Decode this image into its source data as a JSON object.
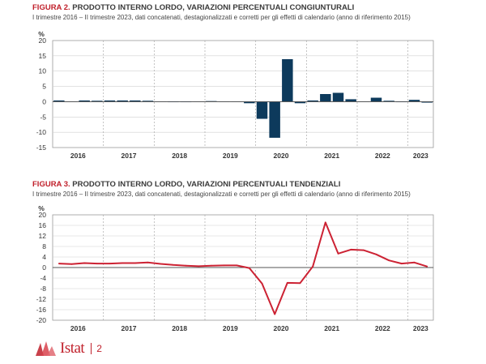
{
  "figures": [
    {
      "number": "FIGURA 2.",
      "title": "PRODOTTO INTERNO LORDO, VARIAZIONI PERCENTUALI CONGIUNTURALI",
      "subtitle": "I trimestre 2016 – II trimestre 2023, dati concatenati, destagionalizzati e corretti per gli effetti di calendario (anno di riferimento 2015)"
    },
    {
      "number": "FIGURA 3.",
      "title": "PRODOTTO INTERNO LORDO, VARIAZIONI PERCENTUALI TENDENZIALI",
      "subtitle": "I trimestre 2016 – II trimestre 2023, dati concatenati, destagionalizzati e corretti per gli effetti di calendario (anno di riferimento 2015)"
    }
  ],
  "chart_data": [
    {
      "type": "bar",
      "ylabel": "%",
      "ylim": [
        -15,
        20
      ],
      "yticks": [
        -15,
        -10,
        -5,
        0,
        5,
        10,
        15,
        20
      ],
      "grid": true,
      "bar_color": "#0d3a5c",
      "categories": [
        "I 2016",
        "II 2016",
        "III 2016",
        "IV 2016",
        "I 2017",
        "II 2017",
        "III 2017",
        "IV 2017",
        "I 2018",
        "II 2018",
        "III 2018",
        "IV 2018",
        "I 2019",
        "II 2019",
        "III 2019",
        "IV 2019",
        "I 2020",
        "II 2020",
        "III 2020",
        "IV 2020",
        "I 2021",
        "II 2021",
        "III 2021",
        "IV 2021",
        "I 2022",
        "II 2022",
        "III 2022",
        "IV 2022",
        "I 2023",
        "II 2023"
      ],
      "year_labels": [
        "2016",
        "2017",
        "2018",
        "2019",
        "2020",
        "2021",
        "2022",
        "2023"
      ],
      "values": [
        0.4,
        0.1,
        0.4,
        0.3,
        0.4,
        0.4,
        0.4,
        0.3,
        0.1,
        0.0,
        -0.1,
        0.1,
        0.2,
        0.1,
        0.1,
        -0.5,
        -5.6,
        -11.8,
        13.9,
        -0.5,
        0.4,
        2.5,
        2.9,
        0.8,
        0.1,
        1.3,
        0.3,
        -0.1,
        0.6,
        -0.3
      ]
    },
    {
      "type": "line",
      "ylabel": "%",
      "ylim": [
        -20,
        20
      ],
      "yticks": [
        -20,
        -16,
        -12,
        -8,
        -4,
        0,
        4,
        8,
        12,
        16,
        20
      ],
      "grid": true,
      "line_color": "#cc2233",
      "categories": [
        "I 2016",
        "II 2016",
        "III 2016",
        "IV 2016",
        "I 2017",
        "II 2017",
        "III 2017",
        "IV 2017",
        "I 2018",
        "II 2018",
        "III 2018",
        "IV 2018",
        "I 2019",
        "II 2019",
        "III 2019",
        "IV 2019",
        "I 2020",
        "II 2020",
        "III 2020",
        "IV 2020",
        "I 2021",
        "II 2021",
        "III 2021",
        "IV 2021",
        "I 2022",
        "II 2022",
        "III 2022",
        "IV 2022",
        "I 2023",
        "II 2023"
      ],
      "year_labels": [
        "2016",
        "2017",
        "2018",
        "2019",
        "2020",
        "2021",
        "2022",
        "2023"
      ],
      "values": [
        1.5,
        1.3,
        1.7,
        1.5,
        1.5,
        1.7,
        1.7,
        1.9,
        1.4,
        1.0,
        0.7,
        0.5,
        0.7,
        0.8,
        0.8,
        -0.2,
        -6.1,
        -17.7,
        -5.8,
        -5.9,
        0.4,
        17.1,
        5.3,
        6.8,
        6.6,
        5.0,
        2.7,
        1.5,
        1.9,
        0.4
      ]
    }
  ],
  "footer": {
    "logo": "Istat",
    "page": "2"
  }
}
